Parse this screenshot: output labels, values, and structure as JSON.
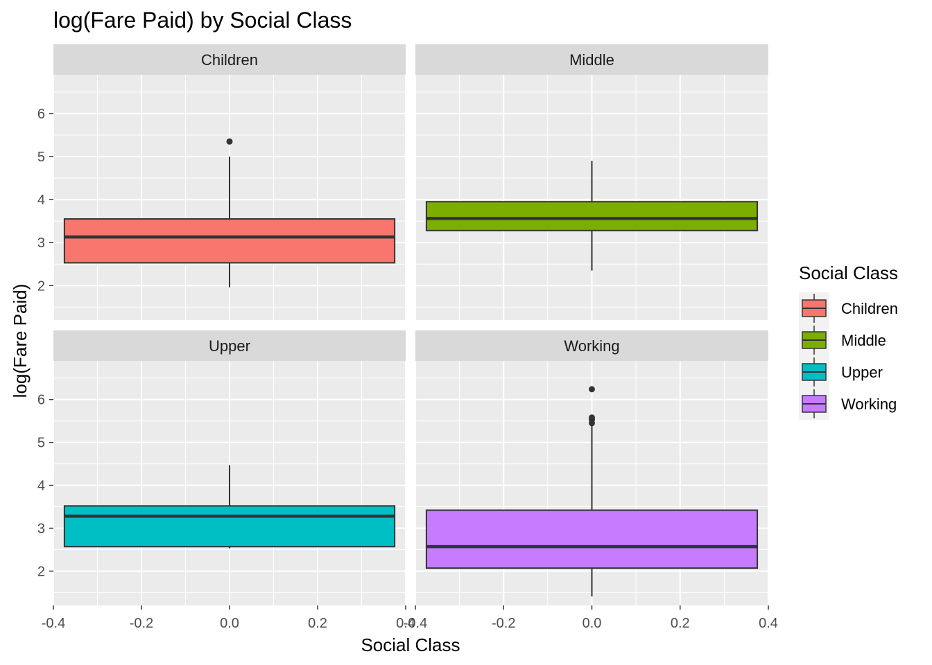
{
  "chart_data": {
    "type": "boxplot",
    "title": "log(Fare Paid) by Social Class",
    "xlabel": "Social Class",
    "ylabel": "log(Fare Paid)",
    "xlim": [
      -0.4,
      0.4
    ],
    "ylim": [
      1.2,
      6.9
    ],
    "x_ticks": [
      -0.4,
      -0.2,
      0.0,
      0.2,
      0.4
    ],
    "x_tick_labels": [
      "-0.4",
      "-0.2",
      "0.0",
      "0.2",
      "0.4"
    ],
    "y_ticks": [
      2,
      3,
      4,
      5,
      6
    ],
    "y_tick_labels": [
      "2",
      "3",
      "4",
      "5",
      "6"
    ],
    "grid": true,
    "legend": {
      "title": "Social Class",
      "position": "right",
      "entries": [
        "Children",
        "Middle",
        "Upper",
        "Working"
      ]
    },
    "facets": [
      {
        "name": "Children",
        "color": "#F8766D",
        "whisker_low": 1.96,
        "q1": 2.53,
        "median": 3.13,
        "q3": 3.55,
        "whisker_high": 5.0,
        "outliers": [
          5.35
        ]
      },
      {
        "name": "Middle",
        "color": "#7CAE00",
        "whisker_low": 2.35,
        "q1": 3.28,
        "median": 3.56,
        "q3": 3.95,
        "whisker_high": 4.9,
        "outliers": []
      },
      {
        "name": "Upper",
        "color": "#00BFC4",
        "whisker_low": 2.53,
        "q1": 2.57,
        "median": 3.28,
        "q3": 3.52,
        "whisker_high": 4.47,
        "outliers": []
      },
      {
        "name": "Working",
        "color": "#C77CFF",
        "whisker_low": 1.41,
        "q1": 2.07,
        "median": 2.57,
        "q3": 3.42,
        "whisker_high": 5.4,
        "outliers": [
          5.45,
          5.53,
          5.58,
          6.24
        ]
      }
    ]
  }
}
